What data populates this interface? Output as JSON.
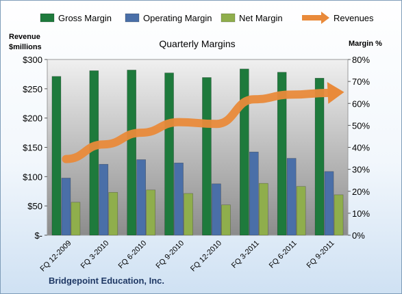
{
  "colors": {
    "gross": "#1e7a3c",
    "operating": "#4a6fa8",
    "net": "#8fae4c",
    "revenues": "#e98a3a",
    "plot_bg_top": "#f0f0f0",
    "plot_bg_bottom": "#8c8c8c"
  },
  "chart_data": {
    "type": "bar",
    "title": "Quarterly Margins",
    "left_axis_label_line1": "Revenue",
    "left_axis_label_line2": "$millions",
    "right_axis_label": "Margin %",
    "footer": "Bridgepoint Education, Inc.",
    "categories": [
      "FQ 12-2009",
      "FQ 3-2010",
      "FQ 6-2010",
      "FQ 9-2010",
      "FQ 12-2010",
      "FQ 3-2011",
      "FQ 6-2011",
      "FQ 9-2011"
    ],
    "left_axis": {
      "min": 0,
      "max": 300,
      "ticks": [
        "$-",
        "$50",
        "$100",
        "$150",
        "$200",
        "$250",
        "$300"
      ],
      "tick_values": [
        0,
        50,
        100,
        150,
        200,
        250,
        300
      ]
    },
    "right_axis": {
      "min": 0,
      "max": 80,
      "ticks": [
        "0%",
        "10%",
        "20%",
        "30%",
        "40%",
        "50%",
        "60%",
        "70%",
        "80%"
      ],
      "tick_values": [
        0,
        10,
        20,
        30,
        40,
        50,
        60,
        70,
        80
      ]
    },
    "series": [
      {
        "name": "Gross Margin",
        "axis": "right",
        "type": "bar",
        "values": [
          72.3,
          74.9,
          75.2,
          73.9,
          71.8,
          75.7,
          74.2,
          71.5
        ]
      },
      {
        "name": "Operating Margin",
        "axis": "right",
        "type": "bar",
        "values": [
          26.0,
          32.3,
          34.4,
          32.9,
          23.4,
          37.9,
          35.0,
          29.0
        ]
      },
      {
        "name": "Net Margin",
        "axis": "right",
        "type": "bar",
        "values": [
          15.0,
          19.5,
          20.6,
          19.0,
          13.8,
          23.6,
          22.2,
          18.4
        ]
      },
      {
        "name": "Revenues",
        "axis": "left",
        "type": "line",
        "values": [
          130,
          155,
          175,
          193,
          190,
          232,
          240,
          243
        ]
      }
    ],
    "legend_position": "top",
    "grid": false
  }
}
